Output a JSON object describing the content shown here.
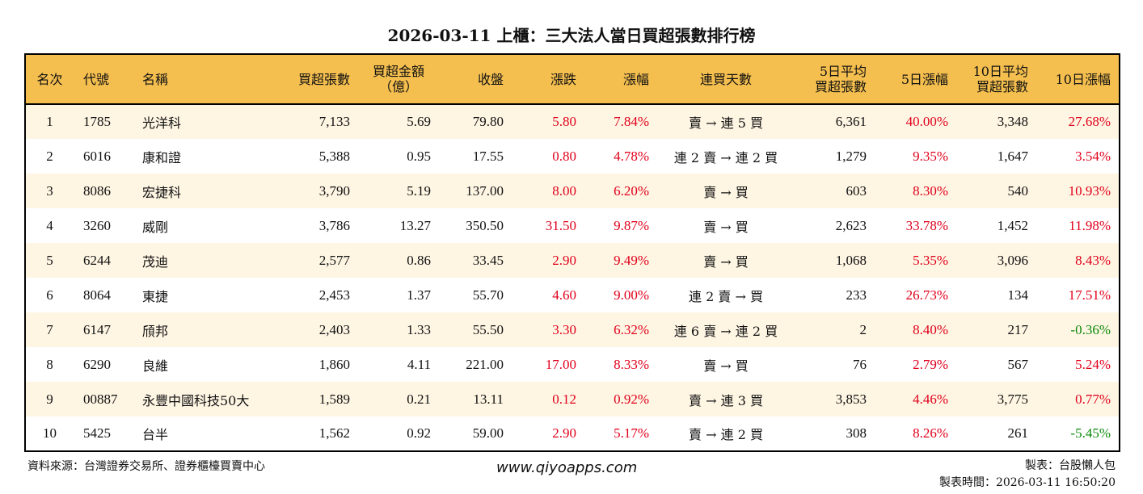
{
  "title": "2026-03-11 上櫃：三大法人當日買超張數排行榜",
  "colors": {
    "header_bg": "#F5BF4F",
    "row_alt_bg": "#FEF5E3",
    "up": "#E0001B",
    "down": "#0A8A0A"
  },
  "headers": [
    "名次",
    "代號",
    "名稱",
    "買超張數",
    "買超金額\n（億）",
    "收盤",
    "漲跌",
    "漲幅",
    "連買天數",
    "5日平均\n買超張數",
    "5日漲幅",
    "10日平均\n買超張數",
    "10日漲幅"
  ],
  "rows": [
    [
      "1",
      "1785",
      "光洋科",
      "7,133",
      "5.69",
      "79.80",
      "5.80",
      "7.84%",
      "賣 → 連 5 買",
      "6,361",
      "40.00%",
      "3,348",
      "27.68%"
    ],
    [
      "2",
      "6016",
      "康和證",
      "5,388",
      "0.95",
      "17.55",
      "0.80",
      "4.78%",
      "連 2 賣 → 連 2 買",
      "1,279",
      "9.35%",
      "1,647",
      "3.54%"
    ],
    [
      "3",
      "8086",
      "宏捷科",
      "3,790",
      "5.19",
      "137.00",
      "8.00",
      "6.20%",
      "賣 → 買",
      "603",
      "8.30%",
      "540",
      "10.93%"
    ],
    [
      "4",
      "3260",
      "威剛",
      "3,786",
      "13.27",
      "350.50",
      "31.50",
      "9.87%",
      "賣 → 買",
      "2,623",
      "33.78%",
      "1,452",
      "11.98%"
    ],
    [
      "5",
      "6244",
      "茂迪",
      "2,577",
      "0.86",
      "33.45",
      "2.90",
      "9.49%",
      "賣 → 買",
      "1,068",
      "5.35%",
      "3,096",
      "8.43%"
    ],
    [
      "6",
      "8064",
      "東捷",
      "2,453",
      "1.37",
      "55.70",
      "4.60",
      "9.00%",
      "連 2 賣 → 買",
      "233",
      "26.73%",
      "134",
      "17.51%"
    ],
    [
      "7",
      "6147",
      "頎邦",
      "2,403",
      "1.33",
      "55.50",
      "3.30",
      "6.32%",
      "連 6 賣 → 連 2 買",
      "2",
      "8.40%",
      "217",
      "-0.36%"
    ],
    [
      "8",
      "6290",
      "良維",
      "1,860",
      "4.11",
      "221.00",
      "17.00",
      "8.33%",
      "賣 → 買",
      "76",
      "2.79%",
      "567",
      "5.24%"
    ],
    [
      "9",
      "00887",
      "永豐中國科技50大",
      "1,589",
      "0.21",
      "13.11",
      "0.12",
      "0.92%",
      "賣 → 連 3 買",
      "3,853",
      "4.46%",
      "3,775",
      "0.77%"
    ],
    [
      "10",
      "5425",
      "台半",
      "1,562",
      "0.92",
      "59.00",
      "2.90",
      "5.17%",
      "賣 → 連 2 買",
      "308",
      "8.26%",
      "261",
      "-5.45%"
    ]
  ],
  "footer": {
    "source": "資料來源：台灣證券交易所、證券櫃檯買賣中心",
    "website": "www.qiyoapps.com",
    "author": "製表：台股懶人包",
    "time": "製表時間：2026-03-11 16:50:20"
  }
}
